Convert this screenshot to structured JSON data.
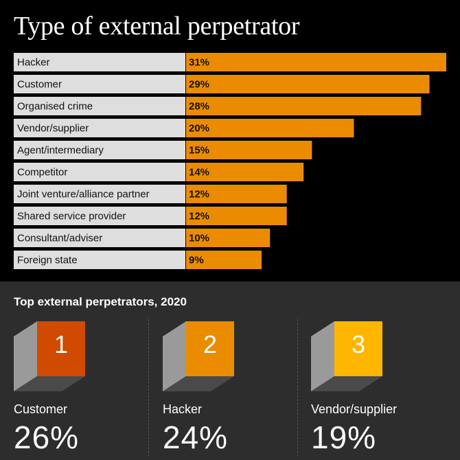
{
  "chart_data": {
    "type": "bar",
    "orientation": "horizontal",
    "title": "Type of external perpetrator",
    "categories": [
      "Hacker",
      "Customer",
      "Organised crime",
      "Vendor/supplier",
      "Agent/intermediary",
      "Competitor",
      "Joint venture/alliance partner",
      "Shared service provider",
      "Consultant/adviser",
      "Foreign state"
    ],
    "values": [
      31,
      29,
      28,
      20,
      15,
      14,
      12,
      12,
      10,
      9
    ],
    "value_labels": [
      "31%",
      "29%",
      "28%",
      "20%",
      "15%",
      "14%",
      "12%",
      "12%",
      "10%",
      "9%"
    ],
    "unit": "%",
    "xlim": [
      0,
      31
    ],
    "bar_color": "#eb8c00",
    "label_box_color": "#dedede"
  },
  "summary": {
    "title": "Top external perpetrators, 2020",
    "ranks": [
      {
        "rank": "1",
        "name": "Customer",
        "value": "26%",
        "color": "#d04a02"
      },
      {
        "rank": "2",
        "name": "Hacker",
        "value": "24%",
        "color": "#eb8c00"
      },
      {
        "rank": "3",
        "name": "Vendor/supplier",
        "value": "19%",
        "color": "#ffb600"
      }
    ]
  }
}
